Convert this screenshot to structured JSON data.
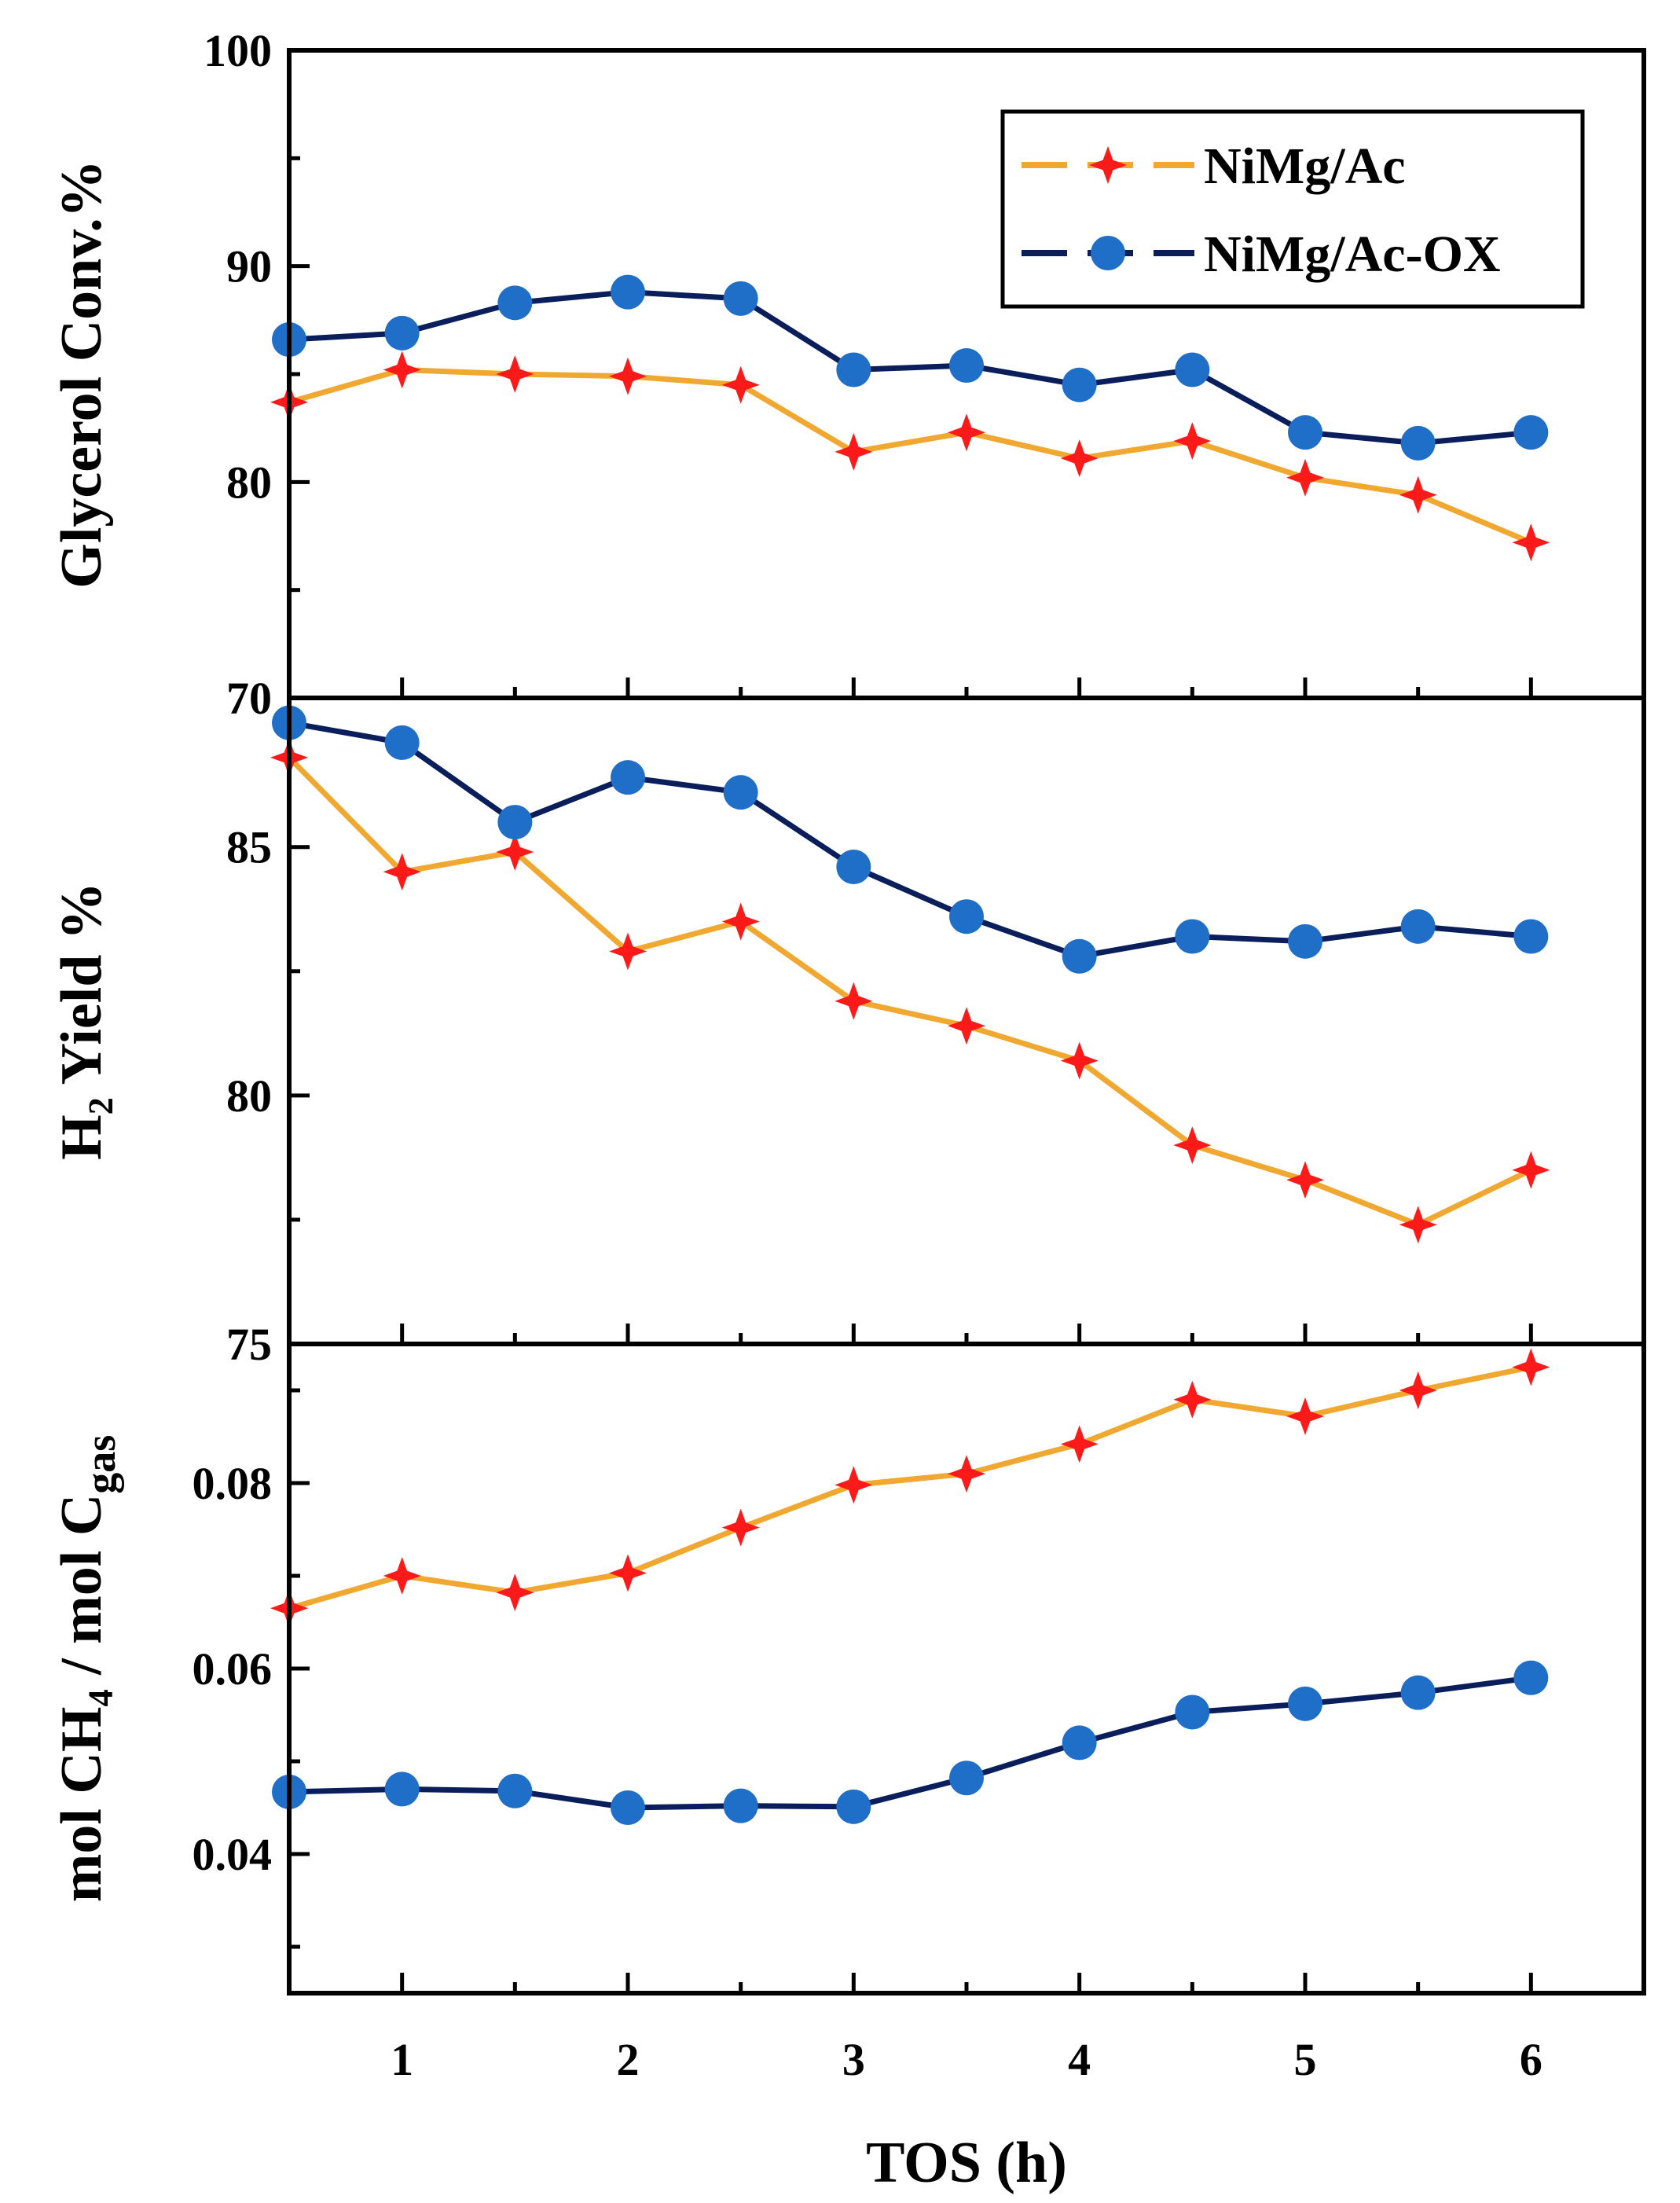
{
  "chart_data": {
    "type": "line",
    "x_title": "TOS (h)",
    "x_ticks": [
      "1",
      "2",
      "3",
      "4",
      "5",
      "6"
    ],
    "xlim": [
      0.5,
      6.5
    ],
    "x": [
      0.5,
      1.0,
      1.5,
      2.0,
      2.5,
      3.0,
      3.5,
      4.0,
      4.5,
      5.0,
      5.5,
      6.0
    ],
    "legend": {
      "position": "top-right",
      "entries": [
        "NiMg/Ac",
        "NiMg/Ac-OX"
      ]
    },
    "colors": {
      "NiMg/Ac": {
        "line": "#F0A830",
        "marker": "#FF1A1A"
      },
      "NiMg/Ac-OX": {
        "line": "#0A1E5C",
        "marker": "#1F6FC8"
      }
    },
    "panels": [
      {
        "id": "glycerol",
        "ylabel": "Glycerol Conv.%",
        "ylim": [
          70,
          100
        ],
        "y_ticks": [
          "70",
          "80",
          "90",
          "100"
        ],
        "series": [
          {
            "name": "NiMg/Ac",
            "values": [
              83.7,
              85.2,
              85.0,
              84.9,
              84.5,
              81.4,
              82.3,
              81.1,
              81.9,
              80.2,
              79.4,
              77.2
            ]
          },
          {
            "name": "NiMg/Ac-OX",
            "values": [
              86.6,
              86.9,
              88.3,
              88.8,
              88.5,
              85.2,
              85.4,
              84.5,
              85.2,
              82.3,
              81.8,
              82.3
            ]
          }
        ]
      },
      {
        "id": "h2",
        "ylabel": "H₂ Yield %",
        "ylim": [
          75,
          88
        ],
        "y_ticks": [
          "75",
          "80",
          "85"
        ],
        "series": [
          {
            "name": "NiMg/Ac",
            "values": [
              86.8,
              84.5,
              84.9,
              82.9,
              83.5,
              81.9,
              81.4,
              80.7,
              79.0,
              78.3,
              77.4,
              78.5
            ]
          },
          {
            "name": "NiMg/Ac-OX",
            "values": [
              87.5,
              87.1,
              85.5,
              86.4,
              86.1,
              84.6,
              83.6,
              82.8,
              83.2,
              83.1,
              83.4,
              83.2
            ]
          }
        ]
      },
      {
        "id": "ch4",
        "ylabel": "mol CH₄ / mol C",
        "ylabel_sub": "gas",
        "ylim": [
          0.025,
          0.095
        ],
        "y_ticks": [
          "0.04",
          "0.06",
          "0.08"
        ],
        "series": [
          {
            "name": "NiMg/Ac",
            "values": [
              0.0665,
              0.07,
              0.0682,
              0.0703,
              0.0752,
              0.0798,
              0.081,
              0.0842,
              0.089,
              0.0872,
              0.09,
              0.0925
            ]
          },
          {
            "name": "NiMg/Ac-OX",
            "values": [
              0.0467,
              0.047,
              0.0468,
              0.045,
              0.0452,
              0.0451,
              0.0482,
              0.052,
              0.0553,
              0.0562,
              0.0574,
              0.059
            ]
          }
        ]
      }
    ]
  }
}
